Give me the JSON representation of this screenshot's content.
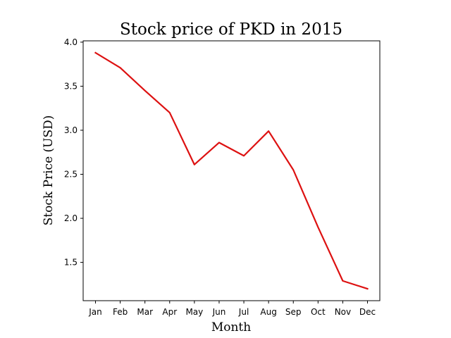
{
  "chart_data": {
    "type": "line",
    "title": "Stock price of PKD in 2015",
    "xlabel": "Month",
    "ylabel": "Stock Price (USD)",
    "categories": [
      "Jan",
      "Feb",
      "Mar",
      "Apr",
      "May",
      "Jun",
      "Jul",
      "Aug",
      "Sep",
      "Oct",
      "Nov",
      "Dec"
    ],
    "series": [
      {
        "color": "#dd1111",
        "values": [
          3.88,
          3.71,
          3.45,
          3.2,
          2.61,
          2.86,
          2.71,
          2.99,
          2.55,
          1.9,
          1.29,
          1.2
        ]
      }
    ],
    "yticks": [
      "1.5",
      "2.0",
      "2.5",
      "3.0",
      "3.5",
      "4.0"
    ],
    "ylim": [
      1.065,
      4.015
    ],
    "grid": false,
    "legend": false
  }
}
